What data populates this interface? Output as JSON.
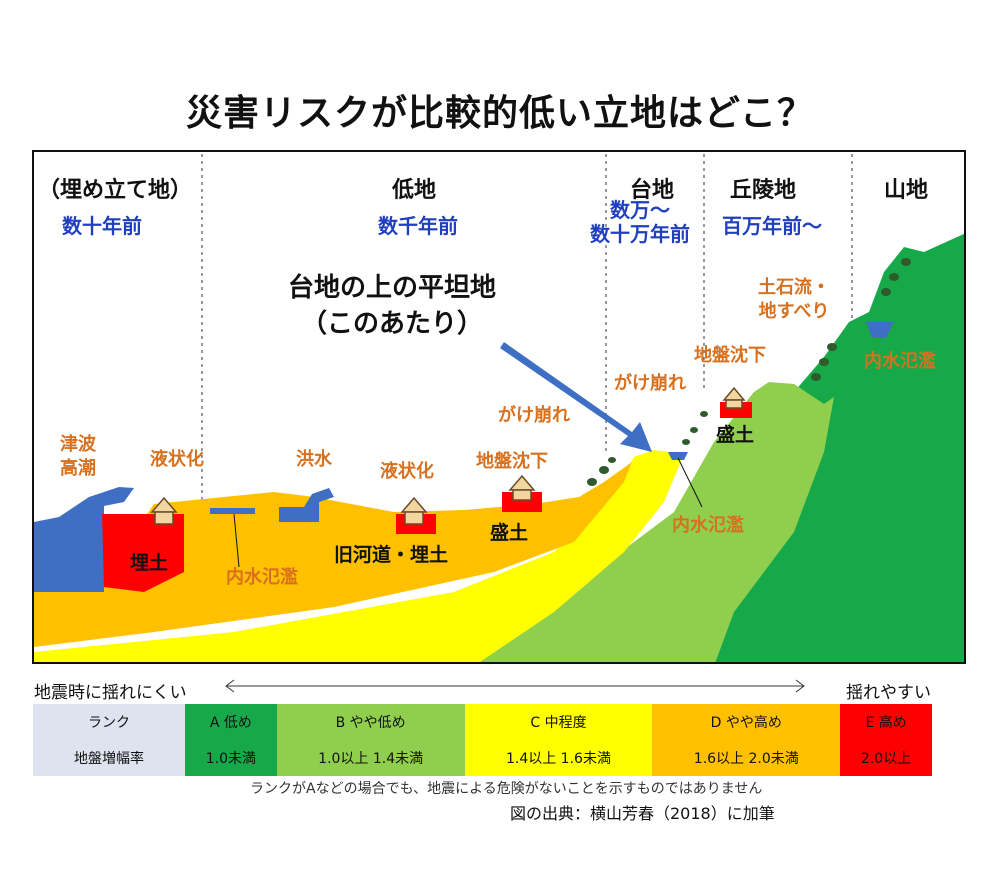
{
  "title": "災害リスクが比較的低い立地はどこ？",
  "regions": {
    "reclaimed": {
      "name": "（埋め立て地）",
      "age": "数十年前"
    },
    "lowland": {
      "name": "低地",
      "age": "数千年前"
    },
    "plateau": {
      "name": "台地",
      "age": "数万～\n数十万年前"
    },
    "hills": {
      "name": "丘陵地",
      "age": "百万年前～"
    },
    "mountain": {
      "name": "山地"
    }
  },
  "callout": "台地の上の平坦地\n（このあたり）",
  "hazards": {
    "tsunami": "津波\n高潮",
    "liquefaction_1": "液状化",
    "flood": "洪水",
    "liquefaction_2": "液状化",
    "subsidence_1": "地盤沈下",
    "cliff_1": "がけ崩れ",
    "cliff_2": "がけ崩れ",
    "subsidence_2": "地盤沈下",
    "debris": "土石流・\n地すべり",
    "inundation_1": "内水氾濫",
    "inundation_2": "内水氾濫",
    "inundation_3": "内水氾濫"
  },
  "fill_labels": {
    "landfill": "埋土",
    "old_river": "旧河道・埋土",
    "fill_1": "盛土",
    "fill_2": "盛土"
  },
  "axis": {
    "left": "地震時に揺れにくい",
    "right": "揺れやすい"
  },
  "rank_table": {
    "row1_header": "ランク",
    "row2_header": "地盤増幅率",
    "ranks": [
      {
        "rank": "A 低め",
        "rate": "1.0未満",
        "color": "#17a84a"
      },
      {
        "rank": "B やや低め",
        "rate": "1.0以上 1.4未満",
        "color": "#8fcf4d"
      },
      {
        "rank": "C 中程度",
        "rate": "1.4以上 1.6未満",
        "color": "#ffff00"
      },
      {
        "rank": "D やや高め",
        "rate": "1.6以上 2.0未満",
        "color": "#ffc000"
      },
      {
        "rank": "E 高め",
        "rate": "2.0以上",
        "color": "#ff0000"
      }
    ],
    "header_color": "#dde3ef"
  },
  "note": "ランクがAなどの場合でも、地震による危険がないことを示すものではありません",
  "source": "図の出典：横山芳春（2018）に加筆"
}
